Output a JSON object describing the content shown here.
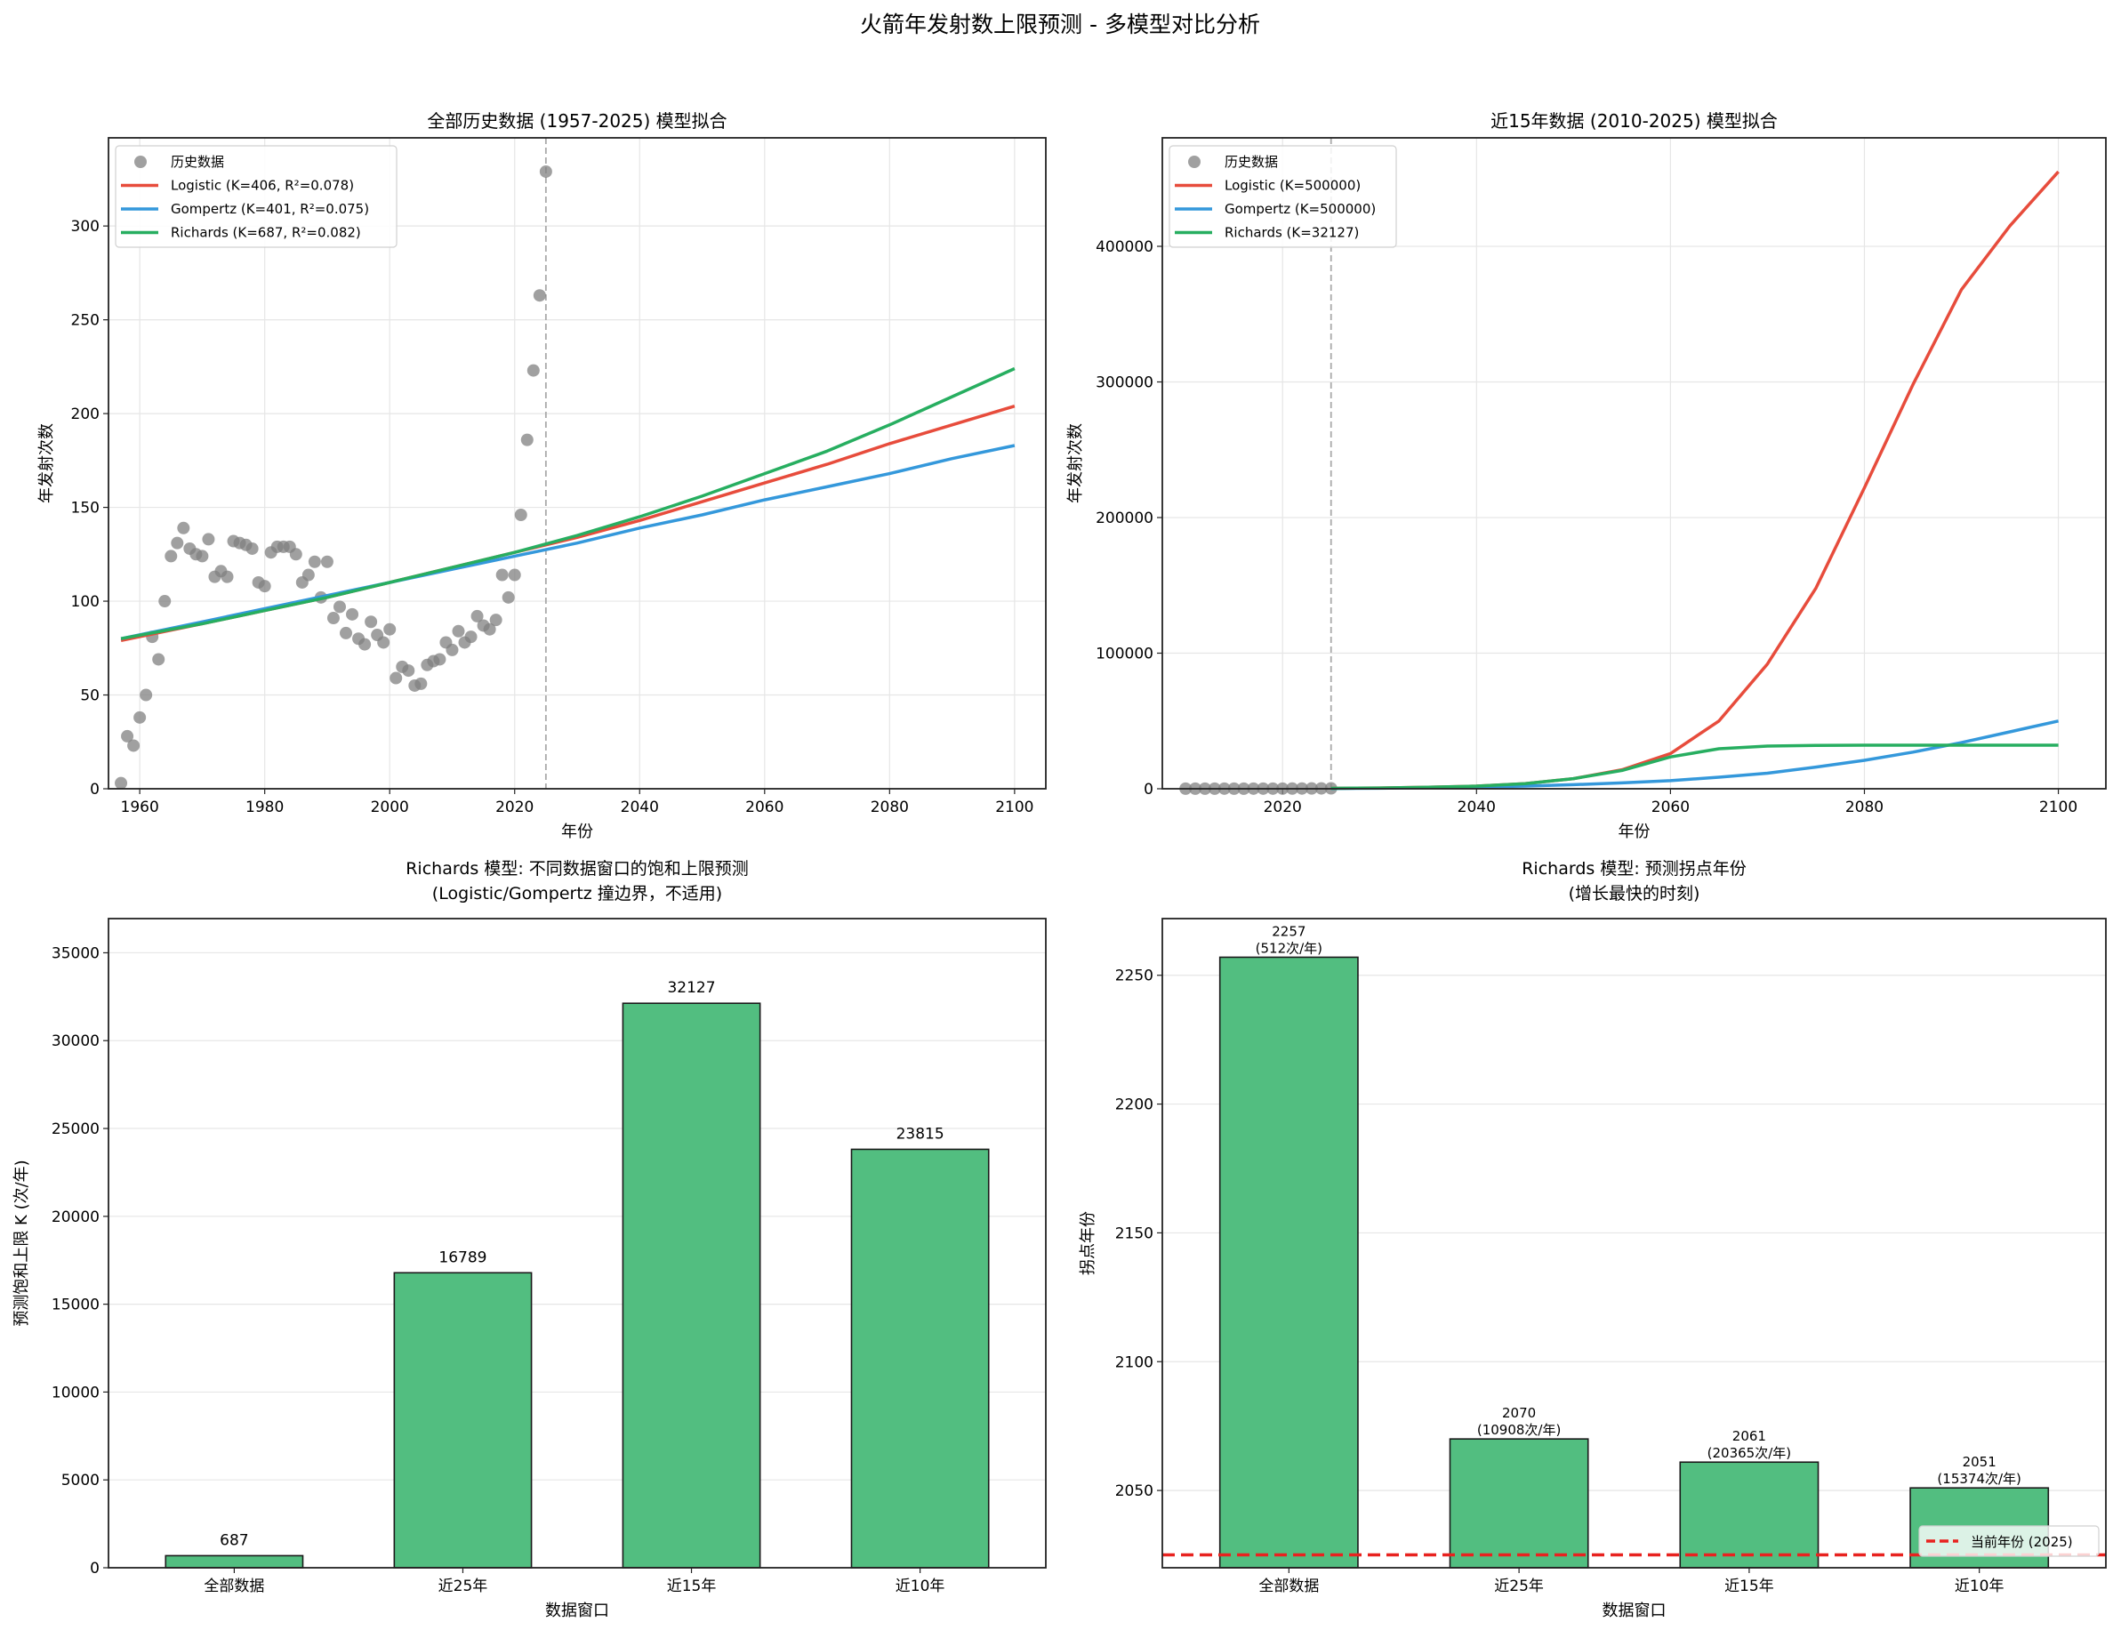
{
  "figure_title": "火箭年发射数上限预测 - 多模型对比分析",
  "colors": {
    "logistic": "#e74c3c",
    "gompertz": "#3498db",
    "richards": "#27ae60",
    "scatter": "#808080",
    "bar": "#52be80",
    "current_year_line": "#e8221f",
    "vline": "#aaaaaa"
  },
  "chart_data": [
    {
      "type": "line+scatter",
      "title": "全部历史数据 (1957-2025) 模型拟合",
      "xlabel": "年份",
      "ylabel": "年发射次数",
      "xlim": [
        1955,
        2105
      ],
      "ylim": [
        0,
        347
      ],
      "xticks": [
        1960,
        1980,
        2000,
        2020,
        2040,
        2060,
        2080,
        2100
      ],
      "yticks": [
        0,
        50,
        100,
        150,
        200,
        250,
        300
      ],
      "grid": true,
      "legend": "top-left",
      "vline_x": 2025,
      "scatter": {
        "name": "历史数据",
        "x": [
          1957,
          1958,
          1959,
          1960,
          1961,
          1962,
          1963,
          1964,
          1965,
          1966,
          1967,
          1968,
          1969,
          1970,
          1971,
          1972,
          1973,
          1974,
          1975,
          1976,
          1977,
          1978,
          1979,
          1980,
          1981,
          1982,
          1983,
          1984,
          1985,
          1986,
          1987,
          1988,
          1989,
          1990,
          1991,
          1992,
          1993,
          1994,
          1995,
          1996,
          1997,
          1998,
          1999,
          2000,
          2001,
          2002,
          2003,
          2004,
          2005,
          2006,
          2007,
          2008,
          2009,
          2010,
          2011,
          2012,
          2013,
          2014,
          2015,
          2016,
          2017,
          2018,
          2019,
          2020,
          2021,
          2022,
          2023,
          2024,
          2025
        ],
        "y": [
          3,
          28,
          23,
          38,
          50,
          81,
          69,
          100,
          124,
          131,
          139,
          128,
          125,
          124,
          133,
          113,
          116,
          113,
          132,
          131,
          130,
          128,
          110,
          108,
          126,
          129,
          129,
          129,
          125,
          110,
          114,
          121,
          102,
          121,
          91,
          97,
          83,
          93,
          80,
          77,
          89,
          82,
          78,
          85,
          59,
          65,
          63,
          55,
          56,
          66,
          68,
          69,
          78,
          74,
          84,
          78,
          81,
          92,
          87,
          85,
          90,
          114,
          102,
          114,
          146,
          186,
          223,
          263,
          329
        ]
      },
      "series": [
        {
          "name": "Logistic (K=406, R²=0.078)",
          "color_key": "logistic",
          "x": [
            1957,
            1970,
            1980,
            1990,
            2000,
            2010,
            2020,
            2030,
            2040,
            2050,
            2060,
            2070,
            2080,
            2090,
            2100
          ],
          "y": [
            79,
            88,
            95,
            102,
            110,
            118,
            126,
            134,
            143,
            153,
            163,
            173,
            184,
            194,
            204
          ]
        },
        {
          "name": "Gompertz (K=401, R²=0.075)",
          "color_key": "gompertz",
          "x": [
            1957,
            1970,
            1980,
            1990,
            2000,
            2010,
            2020,
            2030,
            2040,
            2050,
            2060,
            2070,
            2080,
            2090,
            2100
          ],
          "y": [
            80,
            89,
            96,
            103,
            110,
            117,
            124,
            131,
            139,
            146,
            154,
            161,
            168,
            176,
            183
          ]
        },
        {
          "name": "Richards (K=687, R²=0.082)",
          "color_key": "richards",
          "x": [
            1957,
            1970,
            1980,
            1990,
            2000,
            2010,
            2020,
            2030,
            2040,
            2050,
            2060,
            2070,
            2080,
            2090,
            2100
          ],
          "y": [
            80,
            88,
            95,
            102,
            110,
            118,
            126,
            135,
            145,
            156,
            168,
            180,
            194,
            209,
            224
          ]
        }
      ]
    },
    {
      "type": "line+scatter",
      "title": "近15年数据 (2010-2025) 模型拟合",
      "xlabel": "年份",
      "ylabel": "年发射次数",
      "xlim": [
        2007.6,
        2104.9
      ],
      "ylim": [
        0,
        480000
      ],
      "xticks": [
        2020,
        2040,
        2060,
        2080,
        2100
      ],
      "yticks": [
        0,
        100000,
        200000,
        300000,
        400000
      ],
      "grid": true,
      "legend": "top-left",
      "vline_x": 2025,
      "scatter": {
        "name": "历史数据",
        "x": [
          2010,
          2011,
          2012,
          2013,
          2014,
          2015,
          2016,
          2017,
          2018,
          2019,
          2020,
          2021,
          2022,
          2023,
          2024,
          2025
        ],
        "y": [
          74,
          84,
          78,
          81,
          92,
          87,
          85,
          90,
          114,
          102,
          114,
          146,
          186,
          223,
          263,
          329
        ]
      },
      "series": [
        {
          "name": "Logistic (K=500000)",
          "color_key": "logistic",
          "x": [
            2025,
            2030,
            2035,
            2040,
            2045,
            2050,
            2055,
            2060,
            2065,
            2070,
            2075,
            2080,
            2085,
            2090,
            2095,
            2100
          ],
          "y": [
            300,
            600,
            1100,
            2000,
            3800,
            7500,
            14000,
            26000,
            50000,
            92000,
            148000,
            222000,
            298000,
            368000,
            415000,
            455000
          ]
        },
        {
          "name": "Gompertz (K=500000)",
          "color_key": "gompertz",
          "x": [
            2025,
            2030,
            2035,
            2040,
            2045,
            2050,
            2055,
            2060,
            2065,
            2070,
            2075,
            2080,
            2085,
            2090,
            2095,
            2100
          ],
          "y": [
            200,
            400,
            800,
            1300,
            2000,
            3000,
            4300,
            6000,
            8500,
            11500,
            16000,
            21000,
            27000,
            34000,
            42000,
            50000
          ]
        },
        {
          "name": "Richards (K=32127)",
          "color_key": "richards",
          "x": [
            2025,
            2030,
            2035,
            2040,
            2045,
            2050,
            2055,
            2060,
            2065,
            2070,
            2075,
            2080,
            2085,
            2090,
            2095,
            2100
          ],
          "y": [
            300,
            600,
            1100,
            2000,
            3800,
            7500,
            13500,
            23500,
            29500,
            31500,
            32000,
            32100,
            32127,
            32127,
            32127,
            32127
          ]
        }
      ]
    },
    {
      "type": "bar",
      "title": "Richards 模型: 不同数据窗口的饱和上限预测",
      "subtitle": "(Logistic/Gompertz 撞边界，不适用)",
      "xlabel": "数据窗口",
      "ylabel": "预测饱和上限 K (次/年)",
      "categories": [
        "全部数据",
        "近25年",
        "近15年",
        "近10年"
      ],
      "values": [
        687,
        16789,
        32127,
        23815
      ],
      "labels": [
        "687",
        "16789",
        "32127",
        "23815"
      ],
      "ylim": [
        0,
        36946
      ],
      "yticks": [
        0,
        5000,
        10000,
        15000,
        20000,
        25000,
        30000,
        35000
      ],
      "grid": "y"
    },
    {
      "type": "bar",
      "title": "Richards 模型: 预测拐点年份",
      "subtitle": "(增长最快的时刻)",
      "xlabel": "数据窗口",
      "ylabel": "拐点年份",
      "categories": [
        "全部数据",
        "近25年",
        "近15年",
        "近10年"
      ],
      "values": [
        2257,
        2070,
        2061,
        2051
      ],
      "labels": [
        "2257",
        "2070",
        "2061",
        "2051"
      ],
      "rate_labels": [
        "(512次/年)",
        "(10908次/年)",
        "(20365次/年)",
        "(15374次/年)"
      ],
      "ylim": [
        2020,
        2272
      ],
      "yticks": [
        2050,
        2100,
        2150,
        2200,
        2250
      ],
      "grid": "y",
      "hline": {
        "y": 2025,
        "name": "当前年份 (2025)"
      },
      "legend": "lower-right"
    }
  ]
}
